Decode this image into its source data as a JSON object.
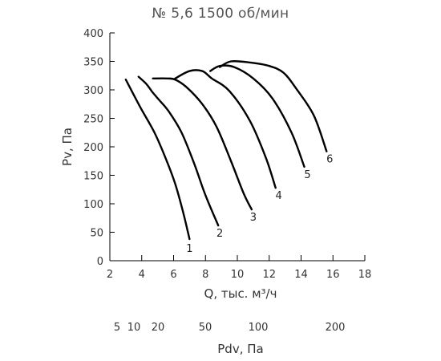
{
  "chart_data": {
    "type": "line",
    "title": "№ 5,6 1500 об/мин",
    "xlabel": "Q, тыс. м³/ч",
    "ylabel": "Pv, Па",
    "xlim": [
      2,
      18
    ],
    "ylim": [
      0,
      400
    ],
    "x_ticks": [
      2,
      4,
      6,
      8,
      10,
      12,
      14,
      16,
      18
    ],
    "y_ticks": [
      0,
      50,
      100,
      150,
      200,
      250,
      300,
      350,
      400
    ],
    "grid": false,
    "series": [
      {
        "name": "1",
        "points": [
          [
            3.0,
            318
          ],
          [
            3.9,
            270
          ],
          [
            4.8,
            225
          ],
          [
            5.5,
            180
          ],
          [
            6.1,
            135
          ],
          [
            6.6,
            85
          ],
          [
            7.0,
            38
          ]
        ]
      },
      {
        "name": "2",
        "points": [
          [
            3.8,
            323
          ],
          [
            4.3,
            310
          ],
          [
            4.7,
            295
          ],
          [
            5.1,
            282
          ],
          [
            5.7,
            262
          ],
          [
            6.5,
            225
          ],
          [
            7.3,
            170
          ],
          [
            8.0,
            115
          ],
          [
            8.8,
            62
          ]
        ]
      },
      {
        "name": "3",
        "points": [
          [
            4.7,
            320
          ],
          [
            5.6,
            320
          ],
          [
            6.1,
            318
          ],
          [
            6.8,
            305
          ],
          [
            7.8,
            275
          ],
          [
            8.7,
            235
          ],
          [
            9.6,
            175
          ],
          [
            10.4,
            118
          ],
          [
            10.9,
            90
          ]
        ]
      },
      {
        "name": "4",
        "points": [
          [
            6.1,
            320
          ],
          [
            7.0,
            333
          ],
          [
            7.8,
            333
          ],
          [
            8.4,
            320
          ],
          [
            9.5,
            298
          ],
          [
            10.8,
            245
          ],
          [
            11.8,
            180
          ],
          [
            12.4,
            128
          ]
        ]
      },
      {
        "name": "5",
        "points": [
          [
            8.3,
            333
          ],
          [
            8.9,
            342
          ],
          [
            9.8,
            340
          ],
          [
            11.0,
            320
          ],
          [
            12.2,
            285
          ],
          [
            13.4,
            225
          ],
          [
            14.2,
            165
          ]
        ]
      },
      {
        "name": "6",
        "points": [
          [
            8.9,
            340
          ],
          [
            9.6,
            350
          ],
          [
            10.8,
            348
          ],
          [
            12.0,
            342
          ],
          [
            12.9,
            330
          ],
          [
            13.7,
            302
          ],
          [
            14.8,
            255
          ],
          [
            15.6,
            192
          ]
        ]
      }
    ],
    "pdv_axis": {
      "label": "Pdv, Па",
      "ticks": [
        "5",
        "10",
        "20",
        "50",
        "100",
        "200"
      ]
    }
  }
}
